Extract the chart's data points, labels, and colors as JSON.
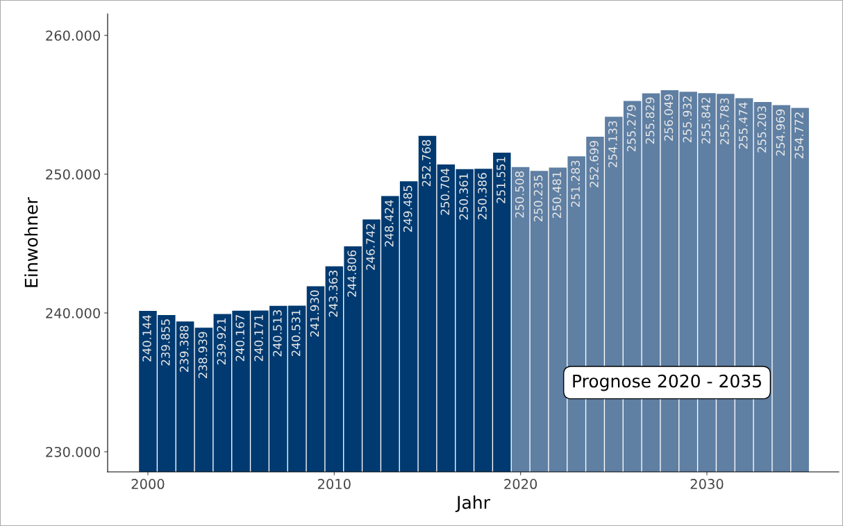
{
  "chart_data": {
    "type": "bar",
    "xlabel": "Jahr",
    "ylabel": "Einwohner",
    "series": [
      {
        "color": "#003a70",
        "x": [
          2000,
          2001,
          2002,
          2003,
          2004,
          2005,
          2006,
          2007,
          2008,
          2009,
          2010,
          2011,
          2012,
          2013,
          2014,
          2015,
          2016,
          2017,
          2018,
          2019
        ],
        "values": [
          240144,
          239855,
          239388,
          238939,
          239921,
          240167,
          240171,
          240513,
          240531,
          241930,
          243363,
          244806,
          246742,
          248424,
          249485,
          252768,
          250704,
          250361,
          250386,
          251551
        ],
        "value_labels": [
          "240.144",
          "239.855",
          "239.388",
          "238.939",
          "239.921",
          "240.167",
          "240.171",
          "240.513",
          "240.531",
          "241.930",
          "243.363",
          "244.806",
          "246.742",
          "248.424",
          "249.485",
          "252.768",
          "250.704",
          "250.361",
          "250.386",
          "251.551"
        ]
      },
      {
        "color": "#5f7fa3",
        "x": [
          2020,
          2021,
          2022,
          2023,
          2024,
          2025,
          2026,
          2027,
          2028,
          2029,
          2030,
          2031,
          2032,
          2033,
          2034,
          2035
        ],
        "values": [
          250508,
          250235,
          250481,
          251283,
          252699,
          254133,
          255279,
          255829,
          256049,
          255932,
          255842,
          255783,
          255474,
          255203,
          254969,
          254772
        ],
        "value_labels": [
          "250.508",
          "250.235",
          "250.481",
          "251.283",
          "252.699",
          "254.133",
          "255.279",
          "255.829",
          "256.049",
          "255.932",
          "255.842",
          "255.783",
          "255.474",
          "255.203",
          "254.969",
          "254.772"
        ]
      }
    ],
    "annotations": [
      "Prognose 2020 - 2035"
    ],
    "xlim": [
      1997.84,
      2037.08
    ],
    "xticks": [
      2000,
      2010,
      2020,
      2030
    ],
    "ylim": [
      228550,
      261550
    ],
    "yticks": [
      {
        "value": 230000,
        "label": "230.000"
      },
      {
        "value": 240000,
        "label": "240.000"
      },
      {
        "value": 250000,
        "label": "250.000"
      },
      {
        "value": 260000,
        "label": "260.000"
      }
    ],
    "grid": false,
    "legend": false
  }
}
